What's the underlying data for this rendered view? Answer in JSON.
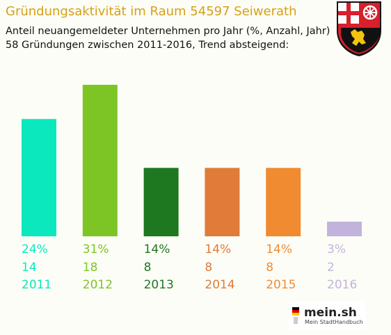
{
  "header": {
    "title": "Gründungsaktivität im Raum 54597 Seiwerath",
    "subtitle_line1": "Anteil neuangemeldeter Unternehmen pro Jahr (%, Anzahl, Jahr)",
    "subtitle_line2": "58 Gründungen zwischen 2011-2016, Trend absteigend:"
  },
  "crest": {
    "icon": "coat-of-arms-icon"
  },
  "brand": {
    "name": "mein.sh",
    "tagline": "Mein StadtHandbuch"
  },
  "chart_data": {
    "type": "bar",
    "categories": [
      "2011",
      "2012",
      "2013",
      "2014",
      "2015",
      "2016"
    ],
    "series": [
      {
        "values": [
          24,
          31,
          14,
          14,
          14,
          3
        ],
        "percent_labels": [
          "24%",
          "31%",
          "14%",
          "14%",
          "14%",
          "3%"
        ],
        "counts": [
          "14",
          "18",
          "8",
          "8",
          "8",
          "2"
        ],
        "colors": [
          "#0ce8bd",
          "#7dc524",
          "#1e7820",
          "#e07b3a",
          "#f08b32",
          "#c2b3dd"
        ]
      }
    ],
    "ylim": [
      0,
      31
    ],
    "grid": false,
    "legend": "none"
  }
}
